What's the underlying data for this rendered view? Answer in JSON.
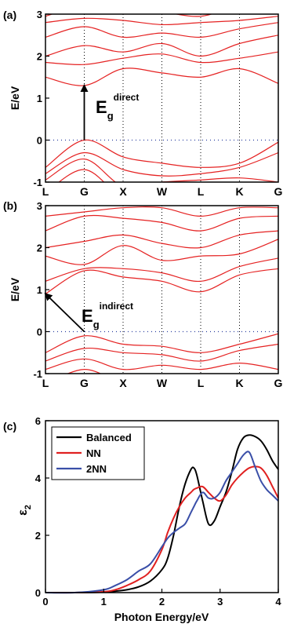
{
  "chart_data": [
    {
      "panel_label": "(a)",
      "type": "line",
      "subtype": "band-structure",
      "ylabel": "E/eV",
      "ylim": [
        -1,
        3
      ],
      "yticks": [
        -1,
        0,
        1,
        2,
        3
      ],
      "kpoints": [
        "L",
        "G",
        "X",
        "W",
        "L",
        "K",
        "G"
      ],
      "kpos": [
        0,
        1,
        2,
        3,
        4,
        5,
        6
      ],
      "fermi_level": 0,
      "annotation": {
        "main": "E",
        "sub": "g",
        "sup": "direct"
      },
      "arrow": {
        "from": {
          "k": 1.0,
          "e": 0.0
        },
        "to": {
          "k": 1.0,
          "e": 1.3
        }
      },
      "bands": [
        [
          -1.25,
          -0.7,
          -1.35,
          -1.3,
          -1.25,
          -1.3,
          -1.3
        ],
        [
          -0.95,
          -0.45,
          -1.1,
          -1.0,
          -0.95,
          -0.9,
          -1.0
        ],
        [
          -0.8,
          -0.3,
          -0.7,
          -0.85,
          -0.8,
          -0.65,
          -0.3
        ],
        [
          -0.65,
          0.0,
          -0.4,
          -0.55,
          -0.65,
          -0.55,
          -0.05
        ],
        [
          1.5,
          1.3,
          1.7,
          1.6,
          1.5,
          1.7,
          1.35
        ],
        [
          1.85,
          1.8,
          1.95,
          2.05,
          1.85,
          1.95,
          2.1
        ],
        [
          2.0,
          2.25,
          2.1,
          2.3,
          2.0,
          2.3,
          2.5
        ],
        [
          2.45,
          2.7,
          2.45,
          2.55,
          2.45,
          2.65,
          2.8
        ],
        [
          2.8,
          2.9,
          2.85,
          2.75,
          2.8,
          2.85,
          2.95
        ],
        [
          2.95,
          3.2,
          3.1,
          3.05,
          2.95,
          3.2,
          3.2
        ]
      ]
    },
    {
      "panel_label": "(b)",
      "type": "line",
      "subtype": "band-structure",
      "ylabel": "E/eV",
      "ylim": [
        -1,
        3
      ],
      "yticks": [
        -1,
        0,
        1,
        2,
        3
      ],
      "kpoints": [
        "L",
        "G",
        "X",
        "W",
        "L",
        "K",
        "G"
      ],
      "kpos": [
        0,
        1,
        2,
        3,
        4,
        5,
        6
      ],
      "fermi_level": 0,
      "annotation": {
        "main": "E",
        "sub": "g",
        "sup": "indirect"
      },
      "arrow": {
        "from": {
          "k": 1.0,
          "e": 0.0
        },
        "to": {
          "k": 0.0,
          "e": 0.9
        }
      },
      "bands": [
        [
          -1.25,
          -0.9,
          -1.2,
          -1.1,
          -1.25,
          -1.1,
          -1.2
        ],
        [
          -0.9,
          -0.65,
          -0.9,
          -0.8,
          -0.9,
          -0.75,
          -0.9
        ],
        [
          -0.7,
          -0.4,
          -0.5,
          -0.55,
          -0.7,
          -0.45,
          -0.3
        ],
        [
          -0.5,
          -0.1,
          -0.3,
          -0.35,
          -0.5,
          -0.3,
          -0.05
        ],
        [
          0.9,
          1.45,
          1.3,
          1.2,
          0.95,
          1.35,
          1.5
        ],
        [
          1.2,
          1.5,
          1.5,
          1.4,
          1.2,
          1.55,
          1.75
        ],
        [
          1.8,
          1.6,
          2.05,
          1.7,
          1.8,
          1.85,
          2.2
        ],
        [
          2.0,
          2.15,
          2.3,
          2.1,
          2.0,
          2.3,
          2.4
        ],
        [
          2.4,
          2.75,
          2.7,
          2.6,
          2.4,
          2.7,
          2.75
        ],
        [
          2.75,
          2.85,
          2.95,
          2.95,
          2.75,
          2.95,
          2.95
        ]
      ]
    },
    {
      "panel_label": "(c)",
      "type": "line",
      "xlabel": "Photon Energy/eV",
      "ylabel": "ε2",
      "ylabel_main": "ε",
      "ylabel_sub": "2",
      "xlim": [
        0,
        4
      ],
      "ylim": [
        0,
        6
      ],
      "xticks": [
        0,
        1,
        2,
        3,
        4
      ],
      "yticks": [
        0,
        2,
        4,
        6
      ],
      "legend": "top-left",
      "x": [
        0,
        0.5,
        1.0,
        1.2,
        1.4,
        1.6,
        1.8,
        2.0,
        2.1,
        2.2,
        2.3,
        2.4,
        2.5,
        2.55,
        2.6,
        2.7,
        2.8,
        2.9,
        3.0,
        3.1,
        3.2,
        3.3,
        3.4,
        3.5,
        3.6,
        3.7,
        3.8,
        3.9,
        4.0
      ],
      "series": [
        {
          "name": "Balanced",
          "color": "#000000",
          "values": [
            0,
            0,
            0.02,
            0.05,
            0.1,
            0.2,
            0.4,
            0.8,
            1.2,
            2.0,
            3.0,
            3.8,
            4.3,
            4.35,
            4.1,
            3.2,
            2.4,
            2.5,
            3.0,
            3.5,
            4.2,
            5.0,
            5.4,
            5.5,
            5.45,
            5.3,
            5.0,
            4.6,
            4.3
          ]
        },
        {
          "name": "NN",
          "color": "#e02020",
          "values": [
            0,
            0,
            0.03,
            0.1,
            0.25,
            0.45,
            0.75,
            1.5,
            2.1,
            2.6,
            3.0,
            3.3,
            3.5,
            3.6,
            3.65,
            3.7,
            3.5,
            3.3,
            3.2,
            3.4,
            3.75,
            4.0,
            4.2,
            4.35,
            4.4,
            4.35,
            4.1,
            3.7,
            3.3
          ]
        },
        {
          "name": "2NN",
          "color": "#3a4fa8",
          "values": [
            0,
            0,
            0.1,
            0.25,
            0.45,
            0.75,
            1.0,
            1.6,
            1.9,
            2.1,
            2.25,
            2.4,
            2.8,
            3.0,
            3.2,
            3.5,
            3.3,
            3.3,
            3.5,
            3.9,
            4.2,
            4.5,
            4.8,
            4.9,
            4.4,
            3.9,
            3.6,
            3.4,
            3.2
          ]
        }
      ]
    }
  ]
}
